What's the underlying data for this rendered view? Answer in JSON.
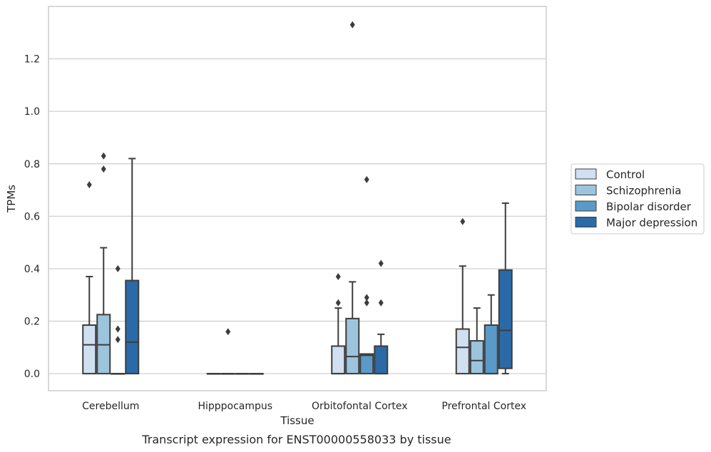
{
  "caption": "Transcript expression for ENST00000558033 by tissue",
  "chart_data": {
    "type": "box",
    "xlabel": "Tissue",
    "ylabel": "TPMs",
    "ylim": [
      -0.065,
      1.4
    ],
    "yticks": [
      0.0,
      0.2,
      0.4,
      0.6,
      0.8,
      1.0,
      1.2
    ],
    "ytick_labels": [
      "0.0",
      "0.2",
      "0.4",
      "0.6",
      "0.8",
      "1.0",
      "1.2"
    ],
    "grid": "horizontal",
    "legend_position": "right",
    "categories": [
      "Cerebellum",
      "Hipppocampus",
      "Orbitofontal Cortex",
      "Prefrontal Cortex"
    ],
    "series": [
      {
        "name": "Control",
        "color": "#d0e0f0",
        "boxes": [
          {
            "q1": 0.0,
            "median": 0.11,
            "q3": 0.185,
            "whisker_low": 0.0,
            "whisker_high": 0.37,
            "outliers": [
              0.72
            ]
          },
          {
            "q1": 0.0,
            "median": 0.0,
            "q3": 0.0,
            "whisker_low": 0.0,
            "whisker_high": 0.0,
            "outliers": []
          },
          {
            "q1": 0.0,
            "median": 0.0,
            "q3": 0.105,
            "whisker_low": 0.0,
            "whisker_high": 0.25,
            "outliers": [
              0.27,
              0.37
            ]
          },
          {
            "q1": 0.0,
            "median": 0.1,
            "q3": 0.17,
            "whisker_low": 0.0,
            "whisker_high": 0.41,
            "outliers": [
              0.58
            ]
          }
        ]
      },
      {
        "name": "Schizophrenia",
        "color": "#9cc4dc",
        "boxes": [
          {
            "q1": 0.0,
            "median": 0.11,
            "q3": 0.225,
            "whisker_low": 0.0,
            "whisker_high": 0.48,
            "outliers": [
              0.78,
              0.83
            ]
          },
          {
            "q1": 0.0,
            "median": 0.0,
            "q3": 0.0,
            "whisker_low": 0.0,
            "whisker_high": 0.0,
            "outliers": [
              0.16
            ]
          },
          {
            "q1": 0.0,
            "median": 0.065,
            "q3": 0.21,
            "whisker_low": 0.0,
            "whisker_high": 0.35,
            "outliers": [
              1.33
            ]
          },
          {
            "q1": 0.0,
            "median": 0.05,
            "q3": 0.125,
            "whisker_low": 0.0,
            "whisker_high": 0.25,
            "outliers": []
          }
        ]
      },
      {
        "name": "Bipolar disorder",
        "color": "#5a9ac8",
        "boxes": [
          {
            "q1": 0.0,
            "median": 0.0,
            "q3": 0.0,
            "whisker_low": 0.0,
            "whisker_high": 0.0,
            "outliers": [
              0.13,
              0.17,
              0.4
            ]
          },
          {
            "q1": 0.0,
            "median": 0.0,
            "q3": 0.0,
            "whisker_low": 0.0,
            "whisker_high": 0.0,
            "outliers": []
          },
          {
            "q1": 0.0,
            "median": 0.07,
            "q3": 0.075,
            "whisker_low": 0.0,
            "whisker_high": 0.075,
            "outliers": [
              0.27,
              0.29,
              0.74
            ]
          },
          {
            "q1": 0.0,
            "median": 0.0,
            "q3": 0.185,
            "whisker_low": 0.0,
            "whisker_high": 0.3,
            "outliers": []
          }
        ]
      },
      {
        "name": "Major depression",
        "color": "#2a6aa8",
        "boxes": [
          {
            "q1": 0.0,
            "median": 0.12,
            "q3": 0.355,
            "whisker_low": 0.0,
            "whisker_high": 0.82,
            "outliers": []
          },
          {
            "q1": 0.0,
            "median": 0.0,
            "q3": 0.0,
            "whisker_low": 0.0,
            "whisker_high": 0.0,
            "outliers": []
          },
          {
            "q1": 0.0,
            "median": 0.0,
            "q3": 0.105,
            "whisker_low": 0.0,
            "whisker_high": 0.15,
            "outliers": [
              0.27,
              0.42
            ]
          },
          {
            "q1": 0.02,
            "median": 0.165,
            "q3": 0.395,
            "whisker_low": 0.0,
            "whisker_high": 0.65,
            "outliers": []
          }
        ]
      }
    ]
  }
}
